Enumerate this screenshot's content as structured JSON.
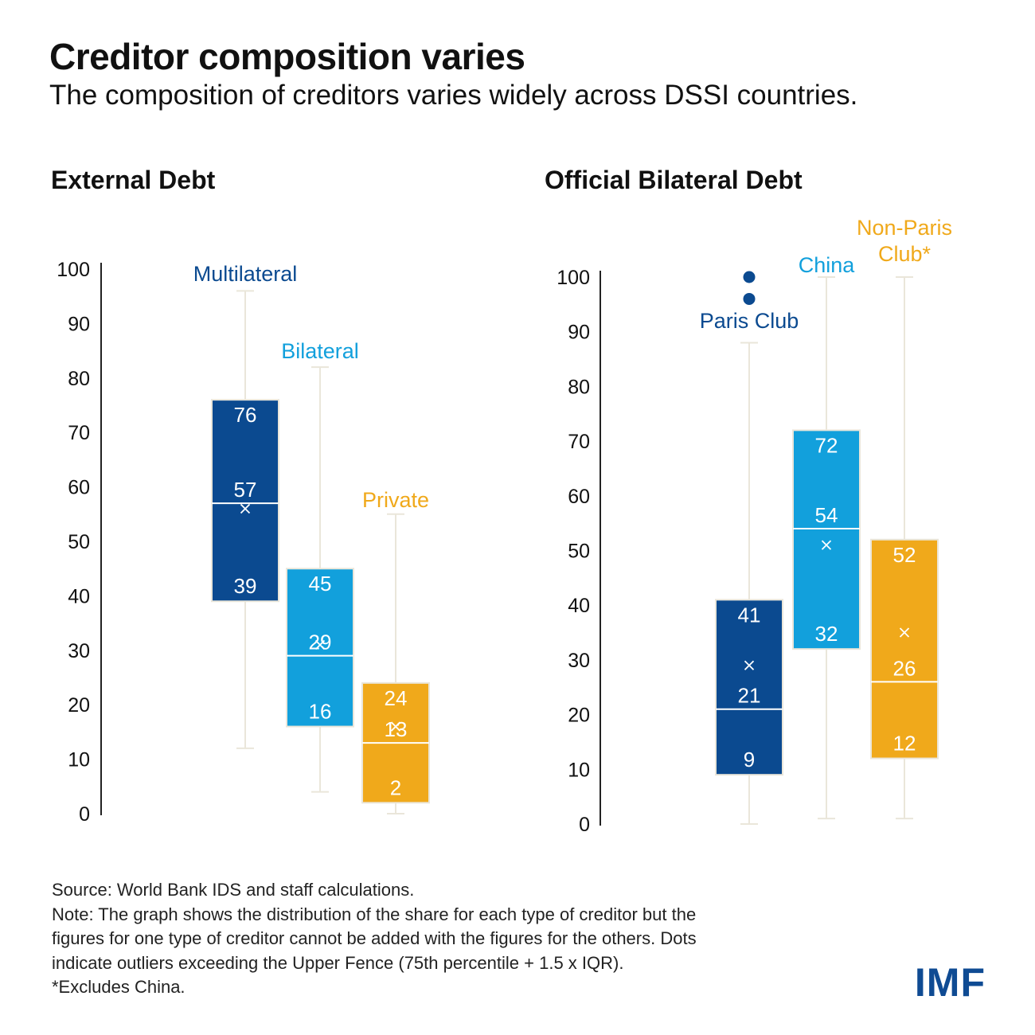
{
  "title": "Creditor composition varies",
  "subtitle": "The composition of creditors varies widely across DSSI countries.",
  "colors": {
    "multilateral": "#0b4a90",
    "bilateral": "#12a0dc",
    "private": "#f0a91b",
    "whisker": "#eae6da",
    "axis": "#222222"
  },
  "chart_data": [
    {
      "type": "box",
      "title": "External Debt",
      "xlabel": "",
      "ylabel": "",
      "ylim": [
        0,
        100
      ],
      "yticks": [
        0,
        10,
        20,
        30,
        40,
        50,
        60,
        70,
        80,
        90,
        100
      ],
      "grid": false,
      "legend": "none",
      "series": [
        {
          "name": "Multilateral",
          "label_lines": [
            "Multilateral"
          ],
          "color_key": "multilateral",
          "whisker_low": 12,
          "q1": 39,
          "median": 57,
          "mean": 56,
          "q3": 76,
          "whisker_high": 96,
          "outliers": [],
          "labels": {
            "q3": "76",
            "median": "57",
            "q1": "39"
          }
        },
        {
          "name": "Bilateral",
          "label_lines": [
            "Bilateral"
          ],
          "color_key": "bilateral",
          "whisker_low": 4,
          "q1": 16,
          "median": 29,
          "mean": 31,
          "q3": 45,
          "whisker_high": 82,
          "outliers": [],
          "labels": {
            "q3": "45",
            "median": "29",
            "q1": "16"
          }
        },
        {
          "name": "Private",
          "label_lines": [
            "Private"
          ],
          "color_key": "private",
          "whisker_low": 0,
          "q1": 2,
          "median": 13,
          "mean": 16,
          "q3": 24,
          "whisker_high": 55,
          "outliers": [],
          "labels": {
            "q3": "24",
            "median": "13",
            "q1": "2"
          }
        }
      ]
    },
    {
      "type": "box",
      "title": "Official Bilateral Debt",
      "xlabel": "",
      "ylabel": "",
      "ylim": [
        0,
        100
      ],
      "yticks": [
        0,
        10,
        20,
        30,
        40,
        50,
        60,
        70,
        80,
        90,
        100
      ],
      "grid": false,
      "legend": "none",
      "series": [
        {
          "name": "Paris Club",
          "label_lines": [
            "Paris Club"
          ],
          "color_key": "multilateral",
          "whisker_low": 0,
          "q1": 9,
          "median": 21,
          "mean": 29,
          "q3": 41,
          "whisker_high": 88,
          "outliers": [
            100,
            96
          ],
          "labels": {
            "q3": "41",
            "median": "21",
            "q1": "9"
          }
        },
        {
          "name": "China",
          "label_lines": [
            "China"
          ],
          "color_key": "bilateral",
          "whisker_low": 1,
          "q1": 32,
          "median": 54,
          "mean": 51,
          "q3": 72,
          "whisker_high": 100,
          "outliers": [],
          "labels": {
            "q3": "72",
            "median": "54",
            "q1": "32"
          }
        },
        {
          "name": "Non-Paris Club*",
          "label_lines": [
            "Non-Paris",
            "Club*"
          ],
          "color_key": "private",
          "whisker_low": 1,
          "q1": 12,
          "median": 26,
          "mean": 35,
          "q3": 52,
          "whisker_high": 100,
          "outliers": [],
          "labels": {
            "q3": "52",
            "median": "26",
            "q1": "12"
          }
        }
      ]
    }
  ],
  "notes": {
    "source": "Source: World Bank IDS and staff calculations.",
    "note_lines": [
      "Note: The graph shows the distribution of the share for each type of creditor but the",
      "figures for one type of creditor cannot be added with the figures for the others. Dots",
      "indicate outliers exceeding the Upper Fence (75th percentile + 1.5 x IQR).",
      "*Excludes China."
    ]
  },
  "logo_text": "IMF"
}
